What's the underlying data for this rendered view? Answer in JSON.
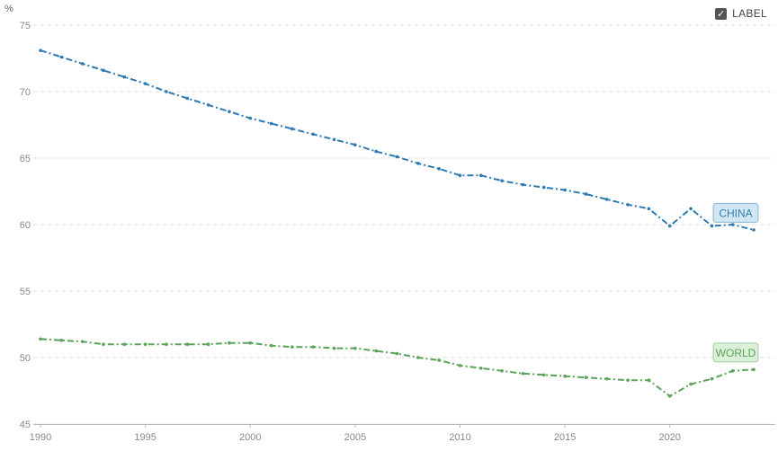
{
  "unit_label": "%",
  "legend": {
    "label": "LABEL",
    "checkbox_icon": "checkmark-icon",
    "checked": true
  },
  "chart_data": {
    "type": "line",
    "xlim": [
      1990,
      2024
    ],
    "ylim": [
      45,
      75
    ],
    "x_ticks": [
      1990,
      1995,
      2000,
      2005,
      2010,
      2015,
      2020
    ],
    "y_ticks": [
      45,
      50,
      55,
      60,
      65,
      70,
      75
    ],
    "grid": true,
    "x": [
      1990,
      1991,
      1992,
      1993,
      1994,
      1995,
      1996,
      1997,
      1998,
      1999,
      2000,
      2001,
      2002,
      2003,
      2004,
      2005,
      2006,
      2007,
      2008,
      2009,
      2010,
      2011,
      2012,
      2013,
      2014,
      2015,
      2016,
      2017,
      2018,
      2019,
      2020,
      2021,
      2022,
      2023,
      2024
    ],
    "series": [
      {
        "name": "CHINA",
        "color": "#2e7bb3",
        "label_bg": "#d2e6f3",
        "values": [
          73.1,
          72.6,
          72.1,
          71.6,
          71.1,
          70.6,
          70.0,
          69.5,
          69.0,
          68.5,
          68.0,
          67.6,
          67.2,
          66.8,
          66.4,
          66.0,
          65.5,
          65.1,
          64.6,
          64.2,
          63.7,
          63.7,
          63.3,
          63.0,
          62.8,
          62.6,
          62.3,
          61.9,
          61.5,
          61.2,
          59.9,
          61.2,
          59.9,
          60.0,
          59.6
        ]
      },
      {
        "name": "WORLD",
        "color": "#5aa45a",
        "label_bg": "#dcefd8",
        "values": [
          51.4,
          51.3,
          51.2,
          51.0,
          51.0,
          51.0,
          51.0,
          51.0,
          51.0,
          51.1,
          51.1,
          50.9,
          50.8,
          50.8,
          50.7,
          50.7,
          50.5,
          50.3,
          50.0,
          49.8,
          49.4,
          49.2,
          49.0,
          48.8,
          48.7,
          48.6,
          48.5,
          48.4,
          48.3,
          48.3,
          47.1,
          48.0,
          48.4,
          49.0,
          49.1
        ]
      }
    ]
  }
}
